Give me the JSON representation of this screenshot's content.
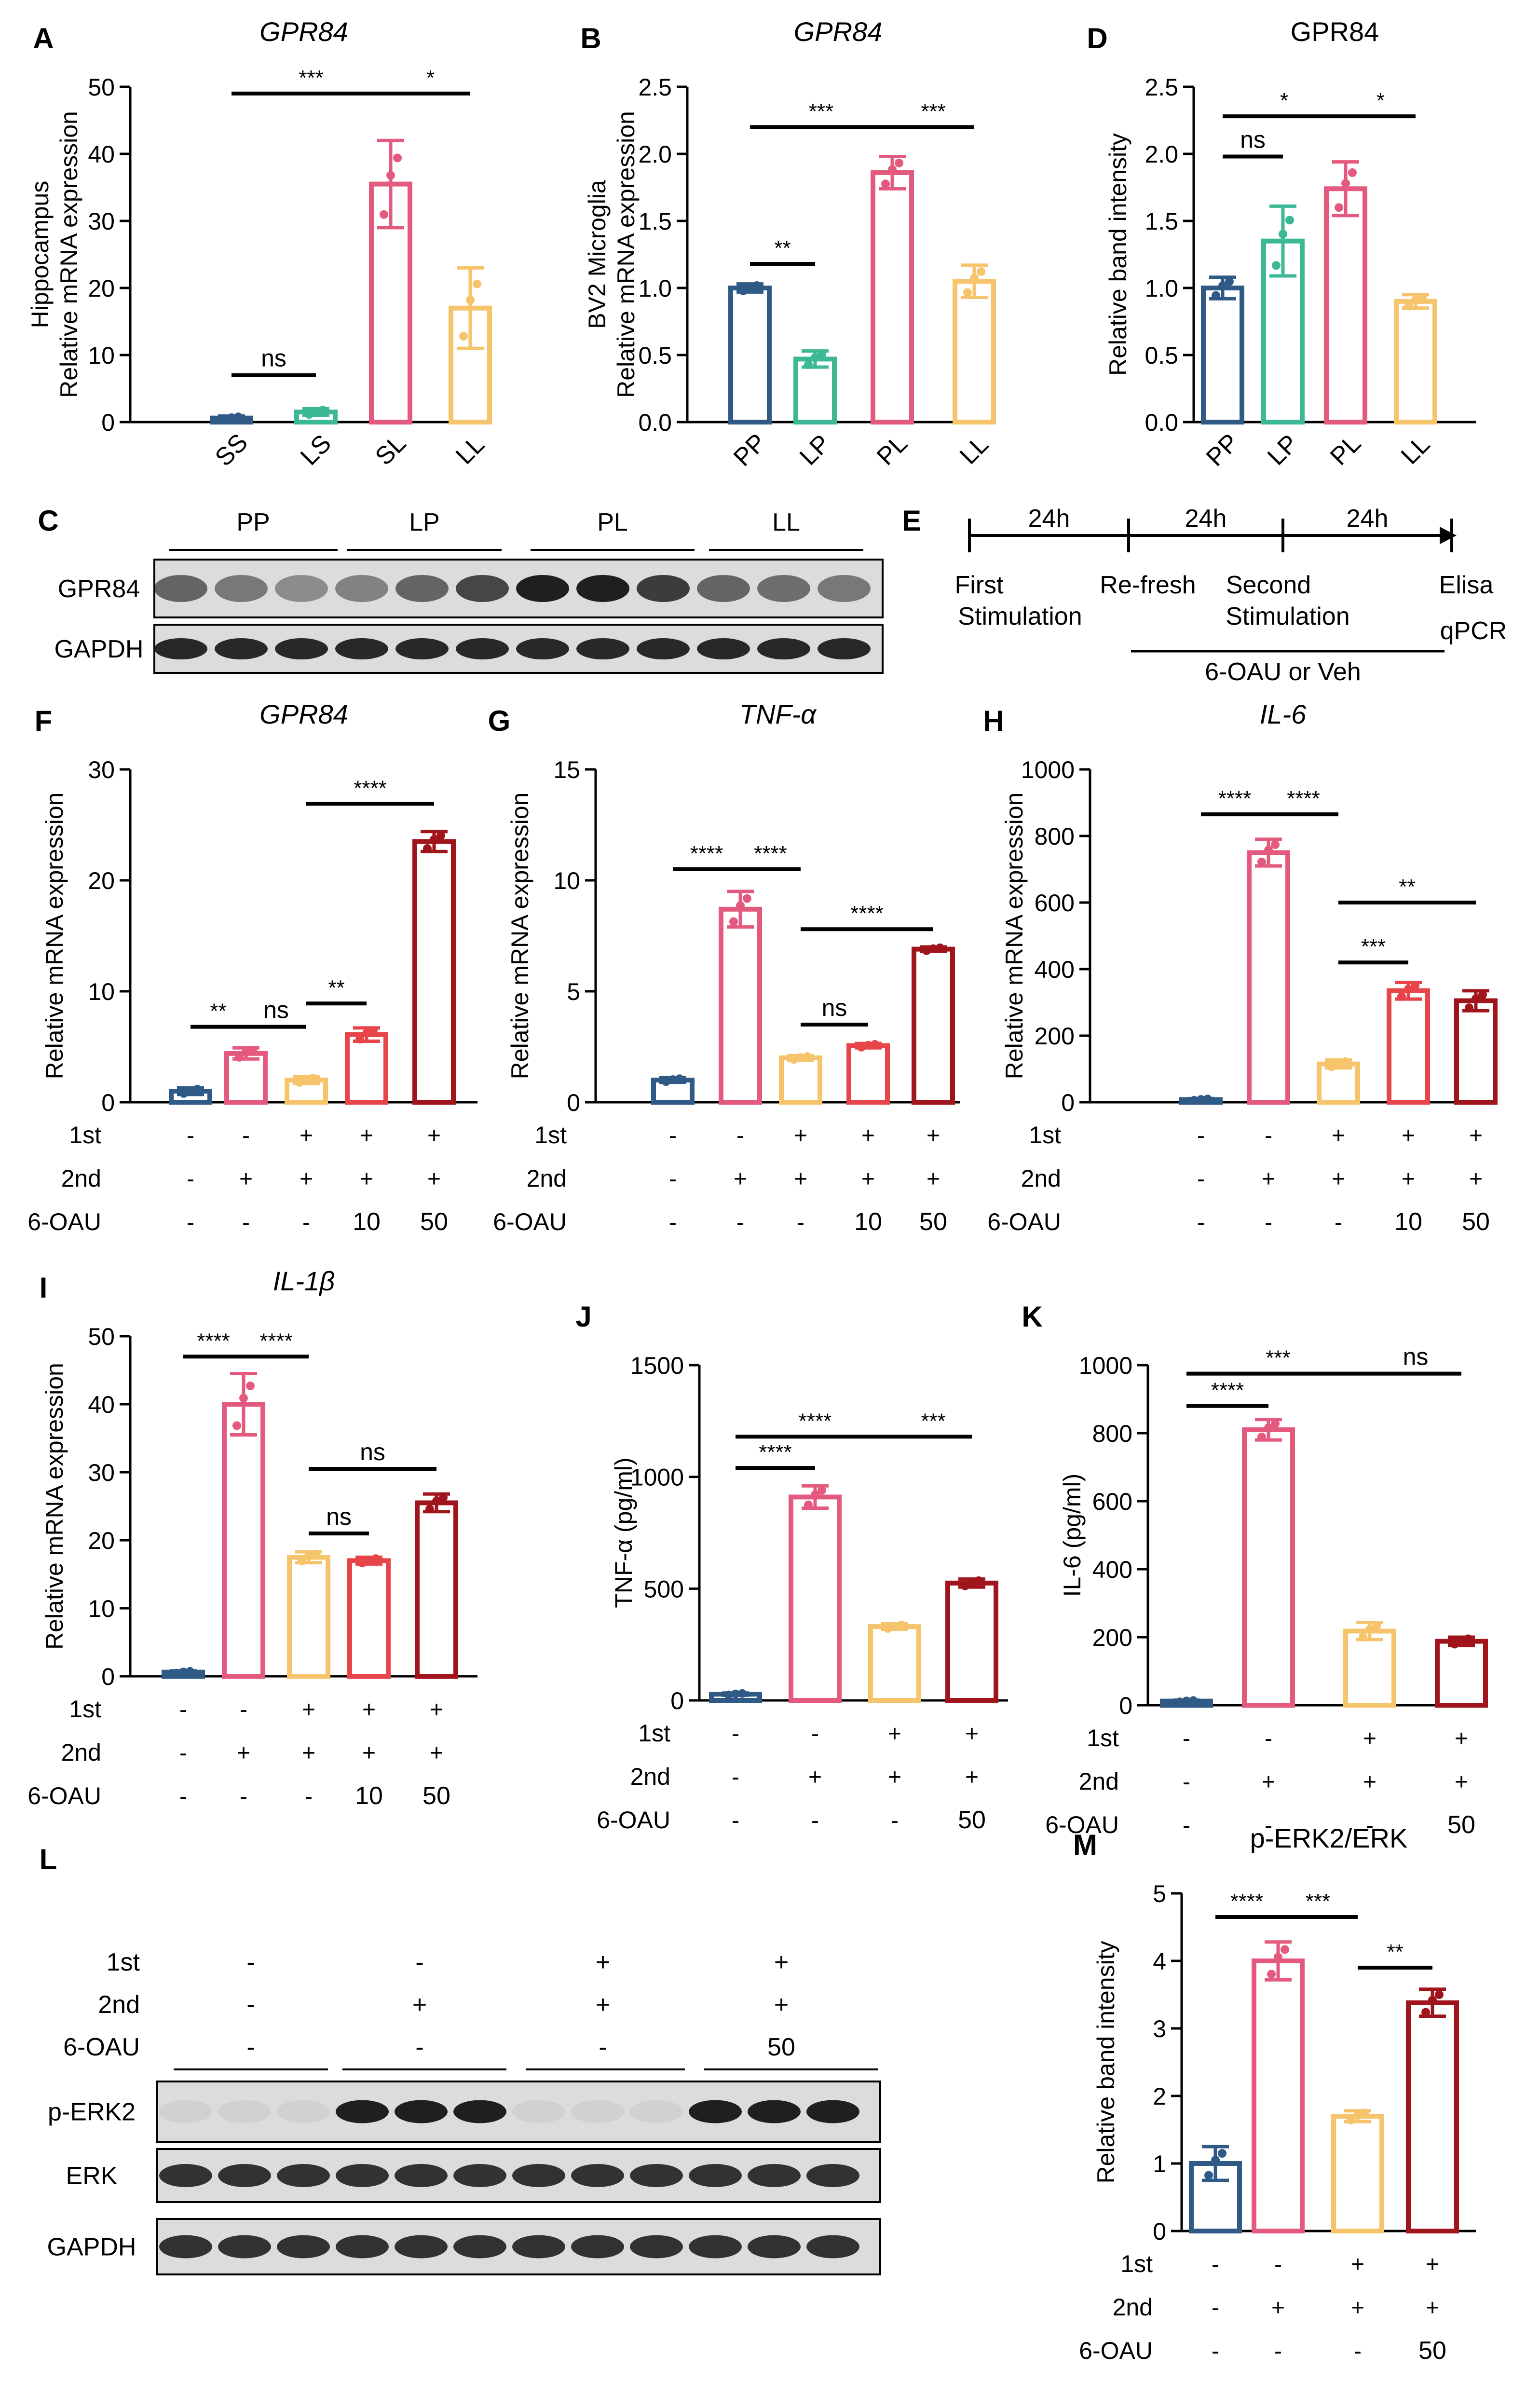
{
  "colors": {
    "c_blue": "#2F5A86",
    "c_green": "#3DB895",
    "c_pink": "#E45A7F",
    "c_yellow": "#F6C46A",
    "c_red": "#E8454A",
    "c_darkred": "#A0151C",
    "text": "#000000"
  },
  "panels": {
    "A": {
      "letter": "A",
      "title": "GPR84",
      "title_italic": true,
      "ylabel1": "Hippocampus",
      "ylabel2": "Relative mRNA expression",
      "ylim": [
        0,
        50
      ],
      "ticks": [
        0,
        10,
        20,
        30,
        40,
        50
      ],
      "categories": [
        "SS",
        "LS",
        "SL",
        "LL"
      ],
      "values": [
        0.6,
        1.5,
        35.5,
        17
      ],
      "errors": [
        0.3,
        0.5,
        6.5,
        6
      ],
      "colors": [
        "c_blue",
        "c_green",
        "c_pink",
        "c_yellow"
      ],
      "sig": [
        {
          "from": 0,
          "to": 1,
          "y": 7,
          "label": "ns"
        },
        {
          "from": 0,
          "to": 2,
          "y": 49,
          "label": "***"
        },
        {
          "from": 2,
          "to": 3,
          "y": 49,
          "label": "*"
        }
      ]
    },
    "B": {
      "letter": "B",
      "title": "GPR84",
      "title_italic": true,
      "ylabel1": "BV2 Microglia",
      "ylabel2": "Relative mRNA expression",
      "ylim": [
        0,
        2.5
      ],
      "ticks": [
        "0.0",
        "0.5",
        "1.0",
        "1.5",
        "2.0",
        "2.5"
      ],
      "categories": [
        "PP",
        "LP",
        "PL",
        "LL"
      ],
      "values": [
        1.0,
        0.47,
        1.86,
        1.05
      ],
      "errors": [
        0.03,
        0.06,
        0.12,
        0.12
      ],
      "colors": [
        "c_blue",
        "c_green",
        "c_pink",
        "c_yellow"
      ],
      "sig": [
        {
          "from": 0,
          "to": 1,
          "y": 1.18,
          "label": "**"
        },
        {
          "from": 0,
          "to": 2,
          "y": 2.2,
          "label": "***"
        },
        {
          "from": 2,
          "to": 3,
          "y": 2.2,
          "label": "***"
        }
      ]
    },
    "D": {
      "letter": "D",
      "title": "GPR84",
      "title_italic": false,
      "ylabel2": "Relative band intensity",
      "ylim": [
        0,
        2.5
      ],
      "ticks": [
        "0.0",
        "0.5",
        "1.0",
        "1.5",
        "2.0",
        "2.5"
      ],
      "categories": [
        "PP",
        "LP",
        "PL",
        "LL"
      ],
      "values": [
        1.0,
        1.35,
        1.74,
        0.9
      ],
      "errors": [
        0.08,
        0.26,
        0.2,
        0.05
      ],
      "colors": [
        "c_blue",
        "c_green",
        "c_pink",
        "c_yellow"
      ],
      "sig": [
        {
          "from": 0,
          "to": 1,
          "y": 1.98,
          "label": "ns"
        },
        {
          "from": 0,
          "to": 2,
          "y": 2.28,
          "label": "*"
        },
        {
          "from": 2,
          "to": 3,
          "y": 2.28,
          "label": "*"
        }
      ]
    },
    "F": {
      "letter": "F",
      "title": "GPR84",
      "title_italic": true,
      "ylabel2": "Relative mRNA expression",
      "ylim": [
        0,
        30
      ],
      "ticks": [
        0,
        10,
        20,
        30
      ],
      "values": [
        1.0,
        4.4,
        2.0,
        6.1,
        23.5
      ],
      "errors": [
        0.3,
        0.5,
        0.3,
        0.6,
        0.9
      ],
      "colors": [
        "c_blue",
        "c_pink",
        "c_yellow",
        "c_red",
        "c_darkred"
      ],
      "rows": {
        "1st": [
          "-",
          "-",
          "+",
          "+",
          "+"
        ],
        "2nd": [
          "-",
          "+",
          "+",
          "+",
          "+"
        ],
        "6-OAU": [
          "-",
          "-",
          "-",
          "10",
          "50"
        ]
      },
      "sig": [
        {
          "from": 0,
          "to": 1,
          "y": 6.8,
          "label": "**"
        },
        {
          "from": 1,
          "to": 2,
          "y": 6.8,
          "label": "ns"
        },
        {
          "from": 2,
          "to": 3,
          "y": 8.9,
          "label": "**"
        },
        {
          "from": 2,
          "to": 4,
          "y": 26.9,
          "label": "****"
        }
      ]
    },
    "G": {
      "letter": "G",
      "title": "TNF-α",
      "title_italic": true,
      "ylabel2": "Relative mRNA expression",
      "ylim": [
        0,
        15
      ],
      "ticks": [
        0,
        5,
        10,
        15
      ],
      "values": [
        1.0,
        8.7,
        2.0,
        2.55,
        6.9
      ],
      "errors": [
        0.1,
        0.8,
        0.1,
        0.1,
        0.1
      ],
      "colors": [
        "c_blue",
        "c_pink",
        "c_yellow",
        "c_red",
        "c_darkred"
      ],
      "rows": {
        "1st": [
          "-",
          "-",
          "+",
          "+",
          "+"
        ],
        "2nd": [
          "-",
          "+",
          "+",
          "+",
          "+"
        ],
        "6-OAU": [
          "-",
          "-",
          "-",
          "10",
          "50"
        ]
      },
      "sig": [
        {
          "from": 0,
          "to": 1,
          "y": 10.5,
          "label": "****"
        },
        {
          "from": 1,
          "to": 2,
          "y": 10.5,
          "label": "****"
        },
        {
          "from": 2,
          "to": 3,
          "y": 3.5,
          "label": "ns"
        },
        {
          "from": 2,
          "to": 4,
          "y": 7.8,
          "label": "****"
        }
      ]
    },
    "H": {
      "letter": "H",
      "title": "IL-6",
      "title_italic": true,
      "ylabel2": "Relative mRNA expression",
      "ylim": [
        0,
        1000
      ],
      "ticks": [
        0,
        200,
        400,
        600,
        800,
        1000
      ],
      "values": [
        8,
        750,
        115,
        335,
        305
      ],
      "errors": [
        3,
        40,
        12,
        25,
        30
      ],
      "colors": [
        "c_blue",
        "c_pink",
        "c_yellow",
        "c_red",
        "c_darkred"
      ],
      "rows": {
        "1st": [
          "-",
          "-",
          "+",
          "+",
          "+"
        ],
        "2nd": [
          "-",
          "+",
          "+",
          "+",
          "+"
        ],
        "6-OAU": [
          "-",
          "-",
          "-",
          "10",
          "50"
        ]
      },
      "sig": [
        {
          "from": 0,
          "to": 1,
          "y": 865,
          "label": "****"
        },
        {
          "from": 1,
          "to": 2,
          "y": 865,
          "label": "****"
        },
        {
          "from": 2,
          "to": 3,
          "y": 420,
          "label": "***"
        },
        {
          "from": 2,
          "to": 4,
          "y": 600,
          "label": "**"
        }
      ]
    },
    "I": {
      "letter": "I",
      "title": "IL-1β",
      "title_italic": true,
      "ylabel2": "Relative mRNA expression",
      "ylim": [
        0,
        50
      ],
      "ticks": [
        0,
        10,
        20,
        30,
        40,
        50
      ],
      "values": [
        0.6,
        40,
        17.5,
        17,
        25.5
      ],
      "errors": [
        0.2,
        4.5,
        0.8,
        0.5,
        1.3
      ],
      "colors": [
        "c_blue",
        "c_pink",
        "c_yellow",
        "c_red",
        "c_darkred"
      ],
      "rows": {
        "1st": [
          "-",
          "-",
          "+",
          "+",
          "+"
        ],
        "2nd": [
          "-",
          "+",
          "+",
          "+",
          "+"
        ],
        "6-OAU": [
          "-",
          "-",
          "-",
          "10",
          "50"
        ]
      },
      "sig": [
        {
          "from": 0,
          "to": 1,
          "y": 47,
          "label": "****"
        },
        {
          "from": 1,
          "to": 2,
          "y": 47,
          "label": "****"
        },
        {
          "from": 2,
          "to": 3,
          "y": 21,
          "label": "ns"
        },
        {
          "from": 2,
          "to": 4,
          "y": 30.5,
          "label": "ns"
        }
      ]
    },
    "J": {
      "letter": "J",
      "ylabel2": "TNF-α (pg/ml)",
      "ylim": [
        0,
        1500
      ],
      "ticks": [
        0,
        500,
        1000,
        1500
      ],
      "values": [
        28,
        910,
        330,
        525
      ],
      "errors": [
        5,
        50,
        12,
        18
      ],
      "colors": [
        "c_blue",
        "c_pink",
        "c_yellow",
        "c_darkred"
      ],
      "rows": {
        "1st": [
          "-",
          "-",
          "+",
          "+"
        ],
        "2nd": [
          "-",
          "+",
          "+",
          "+"
        ],
        "6-OAU": [
          "-",
          "-",
          "-",
          "50"
        ]
      },
      "sig": [
        {
          "from": 0,
          "to": 1,
          "y": 1040,
          "label": "****"
        },
        {
          "from": 0,
          "to": 2,
          "y": 1180,
          "label": "****"
        },
        {
          "from": 2,
          "to": 3,
          "y": 1180,
          "label": "***"
        }
      ]
    },
    "K": {
      "letter": "K",
      "ylabel2": "IL-6 (pg/ml)",
      "ylim": [
        0,
        1000
      ],
      "ticks": [
        0,
        200,
        400,
        600,
        800,
        1000
      ],
      "values": [
        12,
        810,
        218,
        188
      ],
      "errors": [
        3,
        30,
        25,
        12
      ],
      "colors": [
        "c_blue",
        "c_pink",
        "c_yellow",
        "c_darkred"
      ],
      "rows": {
        "1st": [
          "-",
          "-",
          "+",
          "+"
        ],
        "2nd": [
          "-",
          "+",
          "+",
          "+"
        ],
        "6-OAU": [
          "-",
          "-",
          "-",
          "50"
        ]
      },
      "sig": [
        {
          "from": 0,
          "to": 1,
          "y": 880,
          "label": "****"
        },
        {
          "from": 0,
          "to": 2,
          "y": 975,
          "label": "***"
        },
        {
          "from": 2,
          "to": 3,
          "y": 975,
          "label": "ns"
        }
      ]
    },
    "M": {
      "letter": "M",
      "title": "p-ERK2/ERK",
      "title_italic": false,
      "ylabel2": "Relative band intensity",
      "ylim": [
        0,
        5
      ],
      "ticks": [
        0,
        1,
        2,
        3,
        4,
        5
      ],
      "values": [
        1.0,
        4.0,
        1.7,
        3.38
      ],
      "errors": [
        0.25,
        0.28,
        0.08,
        0.2
      ],
      "colors": [
        "c_blue",
        "c_pink",
        "c_yellow",
        "c_darkred"
      ],
      "rows": {
        "1st": [
          "-",
          "-",
          "+",
          "+"
        ],
        "2nd": [
          "-",
          "+",
          "+",
          "+"
        ],
        "6-OAU": [
          "-",
          "-",
          "-",
          "50"
        ]
      },
      "sig": [
        {
          "from": 0,
          "to": 1,
          "y": 4.65,
          "label": "****"
        },
        {
          "from": 1,
          "to": 2,
          "y": 4.65,
          "label": "***"
        },
        {
          "from": 2,
          "to": 3,
          "y": 3.9,
          "label": "**"
        }
      ]
    }
  },
  "blotC": {
    "letter": "C",
    "groups": [
      "PP",
      "LP",
      "PL",
      "LL"
    ],
    "rows": [
      "GPR84",
      "GAPDH"
    ]
  },
  "schemeE": {
    "letter": "E",
    "durations": [
      "24h",
      "24h",
      "24h"
    ],
    "labels": [
      "First",
      "Stimulation",
      "Re-fresh",
      "Second",
      "Stimulation",
      "Elisa",
      "qPCR"
    ],
    "treatment": "6-OAU or Veh"
  },
  "blotL": {
    "letter": "L",
    "rowlabels": [
      "1st",
      "2nd",
      "6-OAU"
    ],
    "conditions": [
      [
        "-",
        "-",
        "-"
      ],
      [
        "-",
        "+",
        "-"
      ],
      [
        "+",
        "+",
        "-"
      ],
      [
        "+",
        "+",
        "50"
      ]
    ],
    "bands": [
      "p-ERK2",
      "ERK",
      "GAPDH"
    ]
  },
  "row_labels": [
    "1st",
    "2nd",
    "6-OAU"
  ]
}
